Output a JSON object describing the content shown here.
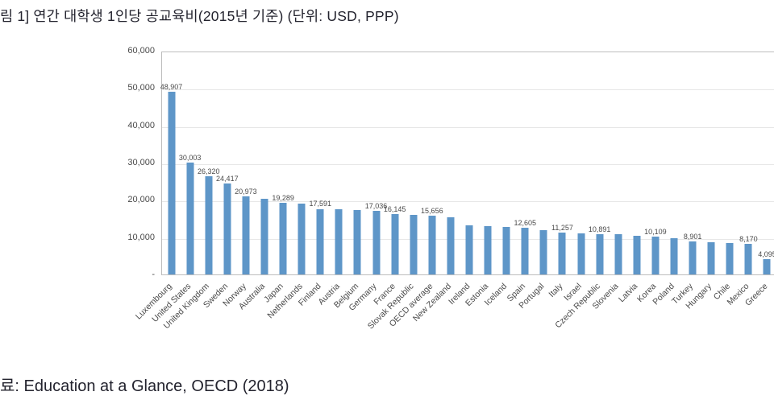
{
  "figure": {
    "title": "림 1] 연간 대학생 1인당 공교육비(2015년 기준) (단위: USD, PPP)",
    "source": "료: Education at a Glance, OECD (2018)"
  },
  "chart_data": {
    "type": "bar",
    "title": "연간 대학생 1인당 공교육비(2015년 기준)",
    "unit": "USD, PPP",
    "ylim": [
      0,
      60000
    ],
    "ytick_labels": [
      "60,000",
      "50,000",
      "40,000",
      "30,000",
      "20,000",
      "10,000",
      "-"
    ],
    "grid": "horizontal-light",
    "legend": "none",
    "bar_color": "#5e96c8",
    "categories": [
      "Luxembourg",
      "United States",
      "United Kingdom",
      "Sweden",
      "Norway",
      "Australia",
      "Japan",
      "Netherlands",
      "Finland",
      "Austria",
      "Belgium",
      "Germany",
      "France",
      "Slovak Republic",
      "OECD average",
      "New Zealand",
      "Ireland",
      "Estonia",
      "Iceland",
      "Spain",
      "Portugal",
      "Italy",
      "Israel",
      "Czech Republic",
      "Slovenia",
      "Latvia",
      "Korea",
      "Poland",
      "Turkey",
      "Hungary",
      "Chile",
      "Mexico",
      "Greece"
    ],
    "values": [
      48907,
      30003,
      26320,
      24417,
      20973,
      20344,
      19289,
      19056,
      17591,
      17549,
      17320,
      17036,
      16145,
      15875,
      15656,
      15392,
      13229,
      12868,
      12675,
      12605,
      11766,
      11257,
      11036,
      10891,
      10832,
      10361,
      10109,
      9687,
      8901,
      8624,
      8400,
      8170,
      4095
    ],
    "value_labels": [
      "48,907",
      "30,003",
      "26,320",
      "24,417",
      "20,973",
      null,
      "19,289",
      null,
      "17,591",
      null,
      null,
      "17,036",
      "16,145",
      null,
      "15,656",
      null,
      null,
      null,
      null,
      "12,605",
      null,
      "11,257",
      null,
      "10,891",
      null,
      null,
      "10,109",
      null,
      "8,901",
      null,
      null,
      "8,170",
      "4,095"
    ]
  }
}
